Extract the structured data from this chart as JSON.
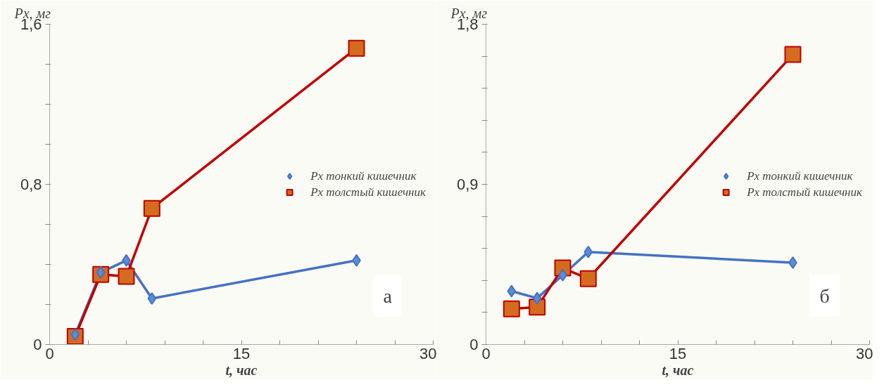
{
  "chart_data": [
    {
      "type": "line",
      "xlabel": "t, час",
      "ylabel": "Pх, мг",
      "annotations": [
        "а"
      ],
      "x": [
        2,
        4,
        6,
        8,
        24
      ],
      "series": [
        {
          "name": "Pх тонкий кишечник",
          "color": "#4472c4",
          "marker": "diamond",
          "values": [
            0.05,
            0.36,
            0.42,
            0.23,
            0.42
          ]
        },
        {
          "name": "Pх толстый кишечник",
          "color": "#c00000",
          "marker": "square",
          "values": [
            0.04,
            0.35,
            0.34,
            0.68,
            1.48
          ]
        }
      ],
      "xlim": [
        0,
        30
      ],
      "ylim": [
        0,
        1.6
      ],
      "xticks": [
        0,
        {
          "value": 3,
          "label": null
        },
        {
          "value": 6,
          "label": null
        },
        {
          "value": 9,
          "label": null
        },
        {
          "value": 12,
          "label": null
        },
        15,
        {
          "value": 18,
          "label": null
        },
        {
          "value": 21,
          "label": null
        },
        {
          "value": 24,
          "label": null
        },
        {
          "value": 27,
          "label": null
        },
        30
      ],
      "yticks": [
        0,
        {
          "value": 0.2,
          "label": null
        },
        {
          "value": 0.4,
          "label": null
        },
        {
          "value": 0.6,
          "label": null
        },
        {
          "value": 0.8,
          "label": "0,8"
        },
        {
          "value": 1.0,
          "label": null
        },
        {
          "value": 1.2,
          "label": null
        },
        {
          "value": 1.4,
          "label": null
        },
        {
          "value": 1.6,
          "label": "1,6"
        }
      ],
      "grid": false,
      "legend": "right"
    },
    {
      "type": "line",
      "xlabel": "t, час",
      "ylabel": "Pх, мг",
      "annotations": [
        "б"
      ],
      "x": [
        2,
        4,
        6,
        8,
        24
      ],
      "series": [
        {
          "name": "Pх тонкий кишечник",
          "color": "#4472c4",
          "marker": "diamond",
          "values": [
            0.3,
            0.26,
            0.39,
            0.52,
            0.46
          ]
        },
        {
          "name": "Pх толстый кишечник",
          "color": "#c00000",
          "marker": "square",
          "values": [
            0.2,
            0.21,
            0.43,
            0.37,
            1.63
          ]
        }
      ],
      "xlim": [
        0,
        30
      ],
      "ylim": [
        0,
        1.8
      ],
      "xticks": [
        0,
        {
          "value": 3,
          "label": null
        },
        {
          "value": 6,
          "label": null
        },
        {
          "value": 9,
          "label": null
        },
        {
          "value": 12,
          "label": null
        },
        15,
        {
          "value": 18,
          "label": null
        },
        {
          "value": 21,
          "label": null
        },
        {
          "value": 24,
          "label": null
        },
        {
          "value": 27,
          "label": null
        },
        30
      ],
      "yticks": [
        0,
        {
          "value": 0.18,
          "label": null
        },
        {
          "value": 0.36,
          "label": null
        },
        {
          "value": 0.54,
          "label": null
        },
        {
          "value": 0.72,
          "label": null
        },
        {
          "value": 0.9,
          "label": "0,9"
        },
        {
          "value": 1.08,
          "label": null
        },
        {
          "value": 1.26,
          "label": null
        },
        {
          "value": 1.44,
          "label": null
        },
        {
          "value": 1.62,
          "label": null
        },
        {
          "value": 1.8,
          "label": "1,8"
        }
      ],
      "grid": false,
      "legend": "right"
    }
  ]
}
